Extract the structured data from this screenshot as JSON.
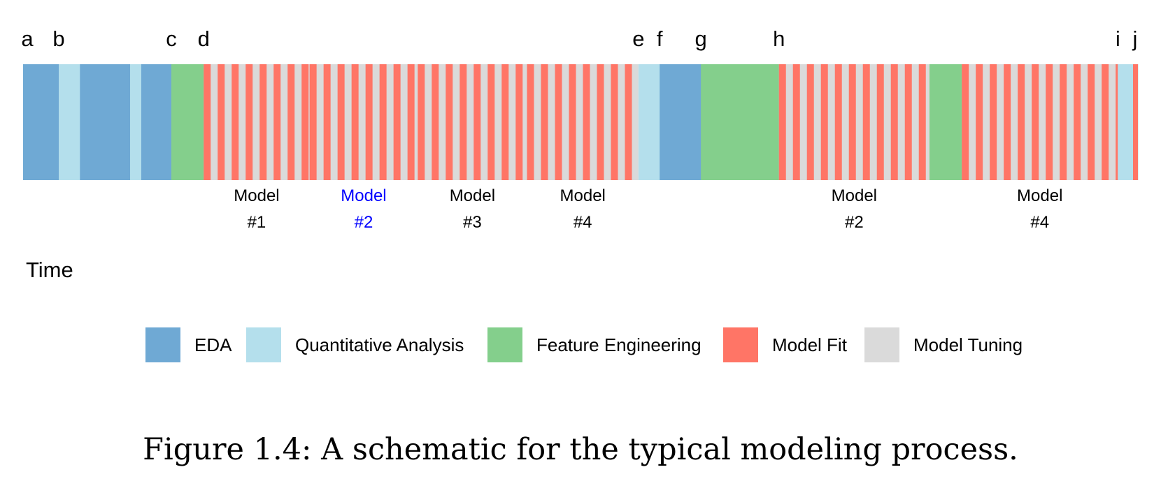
{
  "colors": {
    "eda": "#6fa9d4",
    "quantitative": "#b4dfec",
    "feature": "#84cf8c",
    "fit": "#ff7566",
    "tuning": "#dadada",
    "highlight": "#0000ff",
    "text": "#000000"
  },
  "milestones": [
    "a",
    "b",
    "c",
    "d",
    "e",
    "f",
    "g",
    "h",
    "i",
    "j"
  ],
  "timeline": {
    "axis_label": "Time",
    "blocks": [
      {
        "type": "eda",
        "start": 0.0,
        "end": 3.2
      },
      {
        "type": "quantitative",
        "start": 3.2,
        "end": 5.1
      },
      {
        "type": "eda",
        "start": 5.1,
        "end": 9.6
      },
      {
        "type": "quantitative",
        "start": 9.6,
        "end": 10.6
      },
      {
        "type": "eda",
        "start": 10.6,
        "end": 13.3
      },
      {
        "type": "feature",
        "start": 13.3,
        "end": 16.2
      },
      {
        "type": "model",
        "model": "#1",
        "start": 16.2,
        "end": 25.7,
        "highlight": false
      },
      {
        "type": "model",
        "model": "#2",
        "start": 25.7,
        "end": 35.4,
        "highlight": true
      },
      {
        "type": "model",
        "model": "#3",
        "start": 35.4,
        "end": 45.2,
        "highlight": false
      },
      {
        "type": "model",
        "model": "#4",
        "start": 45.2,
        "end": 55.2,
        "highlight": false
      },
      {
        "type": "quantitative",
        "start": 55.2,
        "end": 57.1
      },
      {
        "type": "eda",
        "start": 57.1,
        "end": 60.8
      },
      {
        "type": "feature",
        "start": 60.8,
        "end": 67.8
      },
      {
        "type": "model",
        "model": "#2",
        "start": 67.8,
        "end": 81.3,
        "highlight": false
      },
      {
        "type": "feature",
        "start": 81.3,
        "end": 84.2
      },
      {
        "type": "model",
        "model": "#4",
        "start": 84.2,
        "end": 98.2,
        "highlight": false
      },
      {
        "type": "quantitative",
        "start": 98.2,
        "end": 100.0
      }
    ],
    "model_word": "Model"
  },
  "legend": [
    {
      "key": "eda",
      "label": "EDA"
    },
    {
      "key": "quantitative",
      "label": "Quantitative Analysis"
    },
    {
      "key": "feature",
      "label": "Feature Engineering"
    },
    {
      "key": "fit",
      "label": "Model Fit"
    },
    {
      "key": "tuning",
      "label": "Model Tuning"
    }
  ],
  "caption": "Figure 1.4: A schematic for the typical modeling process."
}
